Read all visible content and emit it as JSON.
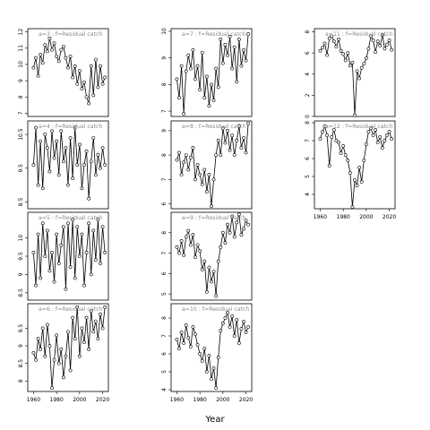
{
  "figure": {
    "xlabel": "Year"
  },
  "chart_data": [
    {
      "type": "line",
      "label": "a=3  :  f=Residual catch",
      "ylim": [
        6.8,
        12.2
      ],
      "yticks": [
        7,
        8,
        9,
        10,
        11,
        12
      ],
      "xlim": [
        1955,
        2025
      ],
      "xticks": [
        1960,
        1980,
        2000,
        2020
      ],
      "show_xticks": false,
      "x": [
        1960,
        1962,
        1964,
        1966,
        1968,
        1970,
        1972,
        1974,
        1976,
        1978,
        1980,
        1982,
        1984,
        1986,
        1988,
        1990,
        1992,
        1994,
        1996,
        1998,
        2000,
        2002,
        2004,
        2006,
        2008,
        2010,
        2012,
        2014,
        2016,
        2018,
        2020,
        2022
      ],
      "y": [
        9.8,
        10.4,
        9.3,
        10.6,
        10.1,
        11.2,
        10.8,
        11.6,
        10.9,
        11.3,
        10.5,
        10.2,
        10.9,
        11.1,
        10.4,
        9.8,
        10.5,
        9.2,
        9.9,
        8.8,
        9.6,
        8.5,
        8.9,
        8.0,
        7.6,
        9.9,
        8.1,
        10.3,
        8.6,
        9.9,
        8.8,
        9.2
      ]
    },
    {
      "type": "line",
      "label": "a=7  :  f=Residual catch",
      "ylim": [
        6.8,
        10.1
      ],
      "yticks": [
        7.0,
        8.0,
        9.0,
        10.0
      ],
      "xlim": [
        1955,
        2025
      ],
      "xticks": [
        1960,
        1980,
        2000,
        2020
      ],
      "show_xticks": false,
      "x": [
        1960,
        1962,
        1964,
        1966,
        1968,
        1970,
        1972,
        1974,
        1976,
        1978,
        1980,
        1982,
        1984,
        1986,
        1988,
        1990,
        1992,
        1994,
        1996,
        1998,
        2000,
        2002,
        2004,
        2006,
        2008,
        2010,
        2012,
        2014,
        2016,
        2018,
        2020,
        2022
      ],
      "y": [
        8.2,
        7.5,
        8.7,
        6.9,
        8.5,
        9.1,
        8.6,
        9.3,
        8.2,
        8.7,
        7.8,
        9.2,
        7.5,
        8.3,
        7.2,
        8.0,
        7.4,
        8.6,
        7.9,
        9.7,
        8.8,
        9.5,
        9.1,
        9.8,
        8.6,
        9.4,
        8.1,
        9.7,
        8.7,
        9.3,
        8.9,
        9.9
      ]
    },
    {
      "type": "line",
      "label": "a=11 : f=Residual catch",
      "ylim": [
        0,
        8.3
      ],
      "yticks": [
        0,
        2,
        4,
        6,
        8
      ],
      "xlim": [
        1955,
        2025
      ],
      "xticks": [
        1960,
        1980,
        2000,
        2020
      ],
      "show_xticks": false,
      "x": [
        1960,
        1962,
        1964,
        1966,
        1968,
        1970,
        1972,
        1974,
        1976,
        1978,
        1980,
        1982,
        1984,
        1986,
        1988,
        1990,
        1992,
        1994,
        1996,
        1998,
        2000,
        2002,
        2004,
        2006,
        2008,
        2010,
        2012,
        2014,
        2016,
        2018,
        2020,
        2022
      ],
      "y": [
        6.2,
        6.5,
        6.9,
        5.8,
        7.4,
        7.6,
        7.1,
        6.6,
        7.3,
        6.2,
        5.9,
        5.3,
        6.0,
        4.8,
        5.1,
        0.1,
        4.3,
        3.6,
        4.6,
        5.0,
        5.5,
        6.4,
        7.6,
        7.2,
        6.1,
        7.1,
        6.7,
        7.7,
        6.4,
        6.8,
        7.2,
        6.3
      ]
    },
    {
      "type": "line",
      "label": "a=4  :  f=Residual catch",
      "ylim": [
        8.3,
        10.9
      ],
      "yticks": [
        8.5,
        9.5,
        10.5
      ],
      "xlim": [
        1955,
        2025
      ],
      "xticks": [
        1960,
        1980,
        2000,
        2020
      ],
      "show_xticks": false,
      "x": [
        1960,
        1962,
        1964,
        1966,
        1968,
        1970,
        1972,
        1974,
        1976,
        1978,
        1980,
        1982,
        1984,
        1986,
        1988,
        1990,
        1992,
        1994,
        1996,
        1998,
        2000,
        2002,
        2004,
        2006,
        2008,
        2010,
        2012,
        2014,
        2016,
        2018,
        2020,
        2022
      ],
      "y": [
        9.6,
        10.7,
        9.0,
        10.3,
        8.9,
        10.5,
        10.1,
        9.4,
        10.6,
        9.8,
        10.3,
        9.3,
        10.6,
        9.7,
        10.1,
        9.0,
        10.4,
        9.2,
        10.7,
        9.6,
        10.2,
        8.9,
        9.6,
        10.0,
        8.6,
        9.7,
        10.4,
        9.3,
        9.9,
        9.5,
        10.1,
        9.6
      ]
    },
    {
      "type": "line",
      "label": "a=8  :  f=Residual catch",
      "ylim": [
        5.8,
        9.4
      ],
      "yticks": [
        6.0,
        7.0,
        8.0,
        9.0
      ],
      "xlim": [
        1955,
        2025
      ],
      "xticks": [
        1960,
        1980,
        2000,
        2020
      ],
      "show_xticks": false,
      "x": [
        1960,
        1962,
        1964,
        1966,
        1968,
        1970,
        1972,
        1974,
        1976,
        1978,
        1980,
        1982,
        1984,
        1986,
        1988,
        1990,
        1992,
        1994,
        1996,
        1998,
        2000,
        2002,
        2004,
        2006,
        2008,
        2010,
        2012,
        2014,
        2016,
        2018,
        2020,
        2022
      ],
      "y": [
        7.8,
        8.1,
        7.2,
        7.7,
        8.0,
        7.4,
        7.9,
        8.3,
        7.0,
        7.6,
        7.2,
        6.8,
        7.4,
        6.5,
        7.2,
        5.9,
        7.0,
        8.0,
        8.6,
        8.0,
        9.1,
        8.5,
        9.0,
        8.2,
        8.8,
        8.0,
        8.6,
        9.2,
        8.3,
        8.7,
        8.1,
        9.3
      ]
    },
    {
      "type": "line",
      "label": "a=12 : f=Residual catch",
      "ylim": [
        3.2,
        8.1
      ],
      "yticks": [
        4,
        5,
        6,
        7,
        8
      ],
      "xlim": [
        1955,
        2025
      ],
      "xticks": [
        1960,
        1980,
        2000,
        2020
      ],
      "show_xticks": true,
      "x": [
        1960,
        1962,
        1964,
        1966,
        1968,
        1970,
        1972,
        1974,
        1976,
        1978,
        1980,
        1982,
        1984,
        1986,
        1988,
        1990,
        1992,
        1994,
        1996,
        1998,
        2000,
        2002,
        2004,
        2006,
        2008,
        2010,
        2012,
        2014,
        2016,
        2018,
        2020,
        2022
      ],
      "y": [
        7.1,
        7.5,
        7.8,
        7.3,
        5.6,
        7.2,
        7.6,
        7.0,
        6.9,
        6.3,
        6.7,
        6.2,
        5.9,
        5.2,
        3.3,
        4.8,
        4.5,
        5.5,
        4.7,
        5.9,
        6.8,
        7.5,
        7.7,
        7.3,
        7.6,
        6.9,
        7.2,
        6.6,
        7.0,
        7.3,
        7.5,
        7.1
      ]
    },
    {
      "type": "line",
      "label": "a=5  :  f=Residual catch",
      "ylim": [
        8.3,
        10.7
      ],
      "yticks": [
        8.5,
        9.0,
        9.5,
        10.0
      ],
      "xlim": [
        1955,
        2025
      ],
      "xticks": [
        1960,
        1980,
        2000,
        2020
      ],
      "show_xticks": false,
      "x": [
        1960,
        1962,
        1964,
        1966,
        1968,
        1970,
        1972,
        1974,
        1976,
        1978,
        1980,
        1982,
        1984,
        1986,
        1988,
        1990,
        1992,
        1994,
        1996,
        1998,
        2000,
        2002,
        2004,
        2006,
        2008,
        2010,
        2012,
        2014,
        2016,
        2018,
        2020,
        2022
      ],
      "y": [
        9.6,
        8.7,
        10.1,
        8.9,
        10.4,
        9.5,
        10.2,
        9.1,
        9.6,
        8.8,
        10.1,
        9.3,
        9.8,
        10.3,
        8.6,
        10.4,
        9.2,
        10.5,
        8.9,
        10.3,
        9.5,
        10.1,
        8.7,
        9.6,
        10.4,
        9.0,
        10.2,
        9.4,
        10.5,
        9.3,
        10.3,
        9.6
      ]
    },
    {
      "type": "line",
      "label": "a=9  :  f=Residual catch",
      "ylim": [
        4.7,
        9.0
      ],
      "yticks": [
        5,
        6,
        7,
        8
      ],
      "xlim": [
        1955,
        2025
      ],
      "xticks": [
        1960,
        1980,
        2000,
        2020
      ],
      "show_xticks": false,
      "x": [
        1960,
        1962,
        1964,
        1966,
        1968,
        1970,
        1972,
        1974,
        1976,
        1978,
        1980,
        1982,
        1984,
        1986,
        1988,
        1990,
        1992,
        1994,
        1996,
        1998,
        2000,
        2002,
        2004,
        2006,
        2008,
        2010,
        2012,
        2014,
        2016,
        2018,
        2020,
        2022
      ],
      "y": [
        7.3,
        7.0,
        7.6,
        6.9,
        7.8,
        8.1,
        7.4,
        7.9,
        6.8,
        7.4,
        7.1,
        6.2,
        6.6,
        5.1,
        6.3,
        5.6,
        6.1,
        4.9,
        6.6,
        7.3,
        8.0,
        7.5,
        8.4,
        8.0,
        8.8,
        7.8,
        8.5,
        8.9,
        7.9,
        8.2,
        8.6,
        8.4
      ]
    },
    {
      "type": "line",
      "label": "a=6  :  f=Residual catch",
      "ylim": [
        7.7,
        10.2
      ],
      "yticks": [
        8.0,
        8.5,
        9.0,
        9.5
      ],
      "xlim": [
        1955,
        2025
      ],
      "xticks": [
        1960,
        1980,
        2000,
        2020
      ],
      "show_xticks": true,
      "x": [
        1960,
        1962,
        1964,
        1966,
        1968,
        1970,
        1972,
        1974,
        1976,
        1978,
        1980,
        1982,
        1984,
        1986,
        1988,
        1990,
        1992,
        1994,
        1996,
        1998,
        2000,
        2002,
        2004,
        2006,
        2008,
        2010,
        2012,
        2014,
        2016,
        2018,
        2020,
        2022
      ],
      "y": [
        8.8,
        8.6,
        9.2,
        8.9,
        9.5,
        8.7,
        9.6,
        9.0,
        7.8,
        8.6,
        9.3,
        8.5,
        8.9,
        8.1,
        8.7,
        9.4,
        8.3,
        9.8,
        9.2,
        10.1,
        8.7,
        9.5,
        9.1,
        9.8,
        8.9,
        10.0,
        9.4,
        9.7,
        9.2,
        9.9,
        9.5,
        10.1
      ]
    },
    {
      "type": "line",
      "label": "a=10 : f=Residual catch",
      "ylim": [
        3.9,
        8.8
      ],
      "yticks": [
        4,
        5,
        6,
        7,
        8
      ],
      "xlim": [
        1955,
        2025
      ],
      "xticks": [
        1960,
        1980,
        2000,
        2020
      ],
      "show_xticks": true,
      "x": [
        1960,
        1962,
        1964,
        1966,
        1968,
        1970,
        1972,
        1974,
        1976,
        1978,
        1980,
        1982,
        1984,
        1986,
        1988,
        1990,
        1992,
        1994,
        1996,
        1998,
        2000,
        2002,
        2004,
        2006,
        2008,
        2010,
        2012,
        2014,
        2016,
        2018,
        2020,
        2022
      ],
      "y": [
        6.8,
        6.3,
        7.2,
        6.6,
        7.6,
        6.9,
        6.4,
        7.5,
        7.1,
        6.5,
        6.0,
        5.6,
        6.3,
        5.0,
        5.9,
        4.6,
        5.2,
        4.1,
        5.8,
        7.3,
        7.7,
        8.0,
        8.3,
        7.5,
        8.1,
        7.0,
        7.9,
        6.6,
        7.4,
        7.8,
        7.2,
        7.5
      ]
    }
  ]
}
